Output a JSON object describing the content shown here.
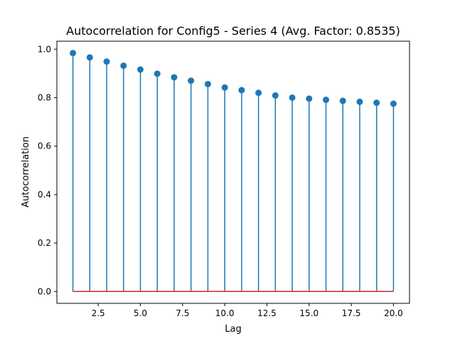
{
  "chart_data": {
    "type": "stem",
    "title": "Autocorrelation for Config5 - Series 4 (Avg. Factor: 0.8535)",
    "xlabel": "Lag",
    "ylabel": "Autocorrelation",
    "xlim": [
      0.05,
      20.95
    ],
    "ylim": [
      -0.049,
      1.033
    ],
    "xticks": [
      2.5,
      5.0,
      7.5,
      10.0,
      12.5,
      15.0,
      17.5,
      20.0
    ],
    "xtick_labels": [
      "2.5",
      "5.0",
      "7.5",
      "10.0",
      "12.5",
      "15.0",
      "17.5",
      "20.0"
    ],
    "yticks": [
      0.0,
      0.2,
      0.4,
      0.6,
      0.8,
      1.0
    ],
    "ytick_labels": [
      "0.0",
      "0.2",
      "0.4",
      "0.6",
      "0.8",
      "1.0"
    ],
    "grid": false,
    "x": [
      1,
      2,
      3,
      4,
      5,
      6,
      7,
      8,
      9,
      10,
      11,
      12,
      13,
      14,
      15,
      16,
      17,
      18,
      19,
      20
    ],
    "values": [
      0.984,
      0.966,
      0.949,
      0.932,
      0.916,
      0.899,
      0.884,
      0.87,
      0.856,
      0.842,
      0.831,
      0.82,
      0.809,
      0.8,
      0.796,
      0.791,
      0.787,
      0.783,
      0.779,
      0.775
    ],
    "baseline": 0.0,
    "colors": {
      "stem": "#1f77b4",
      "marker": "#1f77b4",
      "baseline": "#d62728"
    }
  }
}
